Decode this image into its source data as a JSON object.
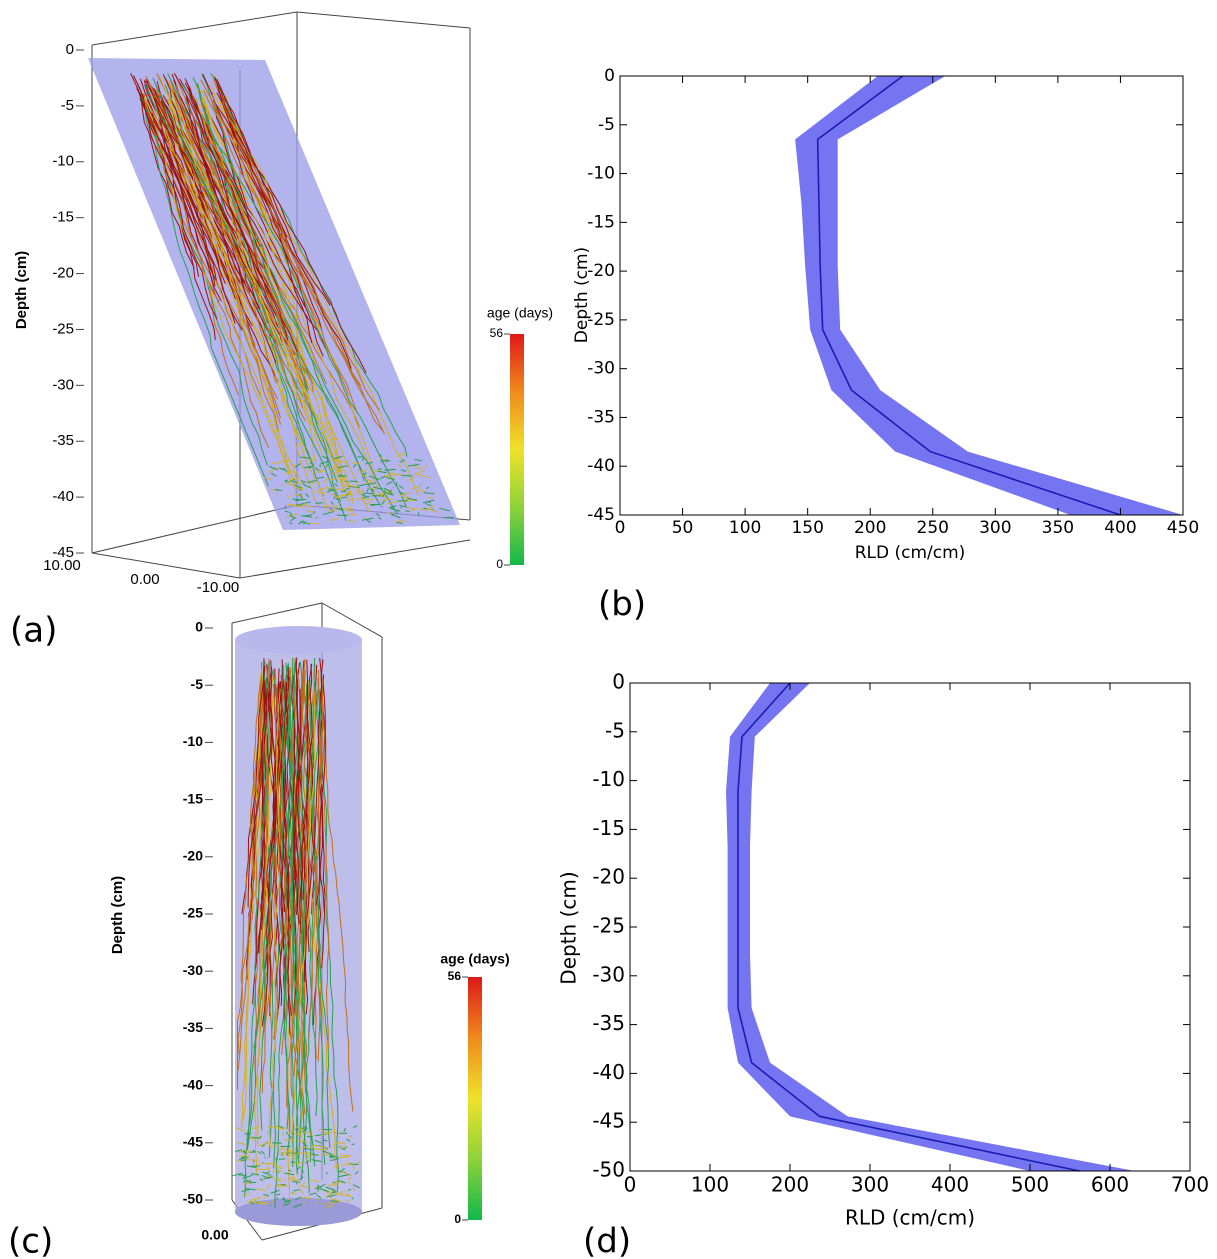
{
  "chart_data": [
    {
      "type": "root-render",
      "label": "(a)",
      "ylabel": "Depth (cm)",
      "ylim": [
        -45,
        0
      ],
      "yticks": [
        0,
        -5,
        -10,
        -15,
        -20,
        -25,
        -30,
        -35,
        -40,
        -45
      ],
      "xticks": [
        {
          "value": 10,
          "label": "10.00"
        },
        {
          "value": 0,
          "label": "0.00"
        },
        {
          "value": -10,
          "label": "-10.00"
        }
      ],
      "colorbar_label": "age (days)",
      "colorbar_lim": [
        0,
        56
      ],
      "colorbar_ticks": [
        0,
        56
      ],
      "colorbar_colors": [
        "#12b84a",
        "#8ed23a",
        "#f0e228",
        "#f08a1c",
        "#e01818"
      ],
      "volume_color": "#9a9ae8"
    },
    {
      "type": "band-line",
      "label": "(b)",
      "xlabel": "RLD (cm/cm)",
      "ylabel": "Depth (cm)",
      "xlim": [
        0,
        450
      ],
      "xticks": [
        0,
        50,
        100,
        150,
        200,
        250,
        300,
        350,
        400,
        450
      ],
      "ylim": [
        -45,
        0
      ],
      "yticks": [
        0,
        -5,
        -10,
        -15,
        -20,
        -25,
        -30,
        -35,
        -40,
        -45
      ],
      "y": [
        0,
        -6.5,
        -13,
        -19.5,
        -26,
        -32.2,
        -38.5,
        -45
      ],
      "values": [
        226,
        158,
        159,
        160,
        162,
        185,
        248,
        400
      ],
      "lower": [
        206,
        140,
        145,
        148,
        152,
        169,
        220,
        360
      ],
      "upper": [
        260,
        174,
        174,
        174,
        176,
        208,
        278,
        450
      ],
      "color": "#1c1cb4",
      "band_color": "#6e6ef0"
    },
    {
      "type": "root-render",
      "label": "(c)",
      "ylabel": "Depth (cm)",
      "ylim": [
        -50,
        0
      ],
      "yticks": [
        0,
        -5,
        -10,
        -15,
        -20,
        -25,
        -30,
        -35,
        -40,
        -45,
        -50
      ],
      "xticks": [
        {
          "value": 0,
          "label": "0.00"
        }
      ],
      "colorbar_label": "age (days)",
      "colorbar_lim": [
        0,
        56
      ],
      "colorbar_ticks": [
        0,
        56
      ],
      "colorbar_colors": [
        "#12b84a",
        "#8ed23a",
        "#f0e228",
        "#f08a1c",
        "#e01818"
      ],
      "volume_color": "#a8a8e4"
    },
    {
      "type": "band-line",
      "label": "(d)",
      "xlabel": "RLD (cm/cm)",
      "ylabel": "Depth (cm)",
      "xlim": [
        0,
        700
      ],
      "xticks": [
        0,
        100,
        200,
        300,
        400,
        500,
        600,
        700
      ],
      "ylim": [
        -50,
        0
      ],
      "yticks": [
        0,
        -5,
        -10,
        -15,
        -20,
        -25,
        -30,
        -35,
        -40,
        -45,
        -50
      ],
      "y": [
        0,
        -5.5,
        -11.1,
        -16.7,
        -22.2,
        -27.8,
        -33.3,
        -38.9,
        -44.4,
        -50
      ],
      "values": [
        200,
        140,
        135,
        135,
        135,
        135,
        135,
        152,
        237,
        562
      ],
      "lower": [
        175,
        125,
        120,
        122,
        122,
        122,
        122,
        135,
        200,
        500
      ],
      "upper": [
        225,
        156,
        152,
        150,
        150,
        150,
        152,
        175,
        272,
        631
      ],
      "color": "#1c1cb4",
      "band_color": "#6e6ef0"
    }
  ]
}
